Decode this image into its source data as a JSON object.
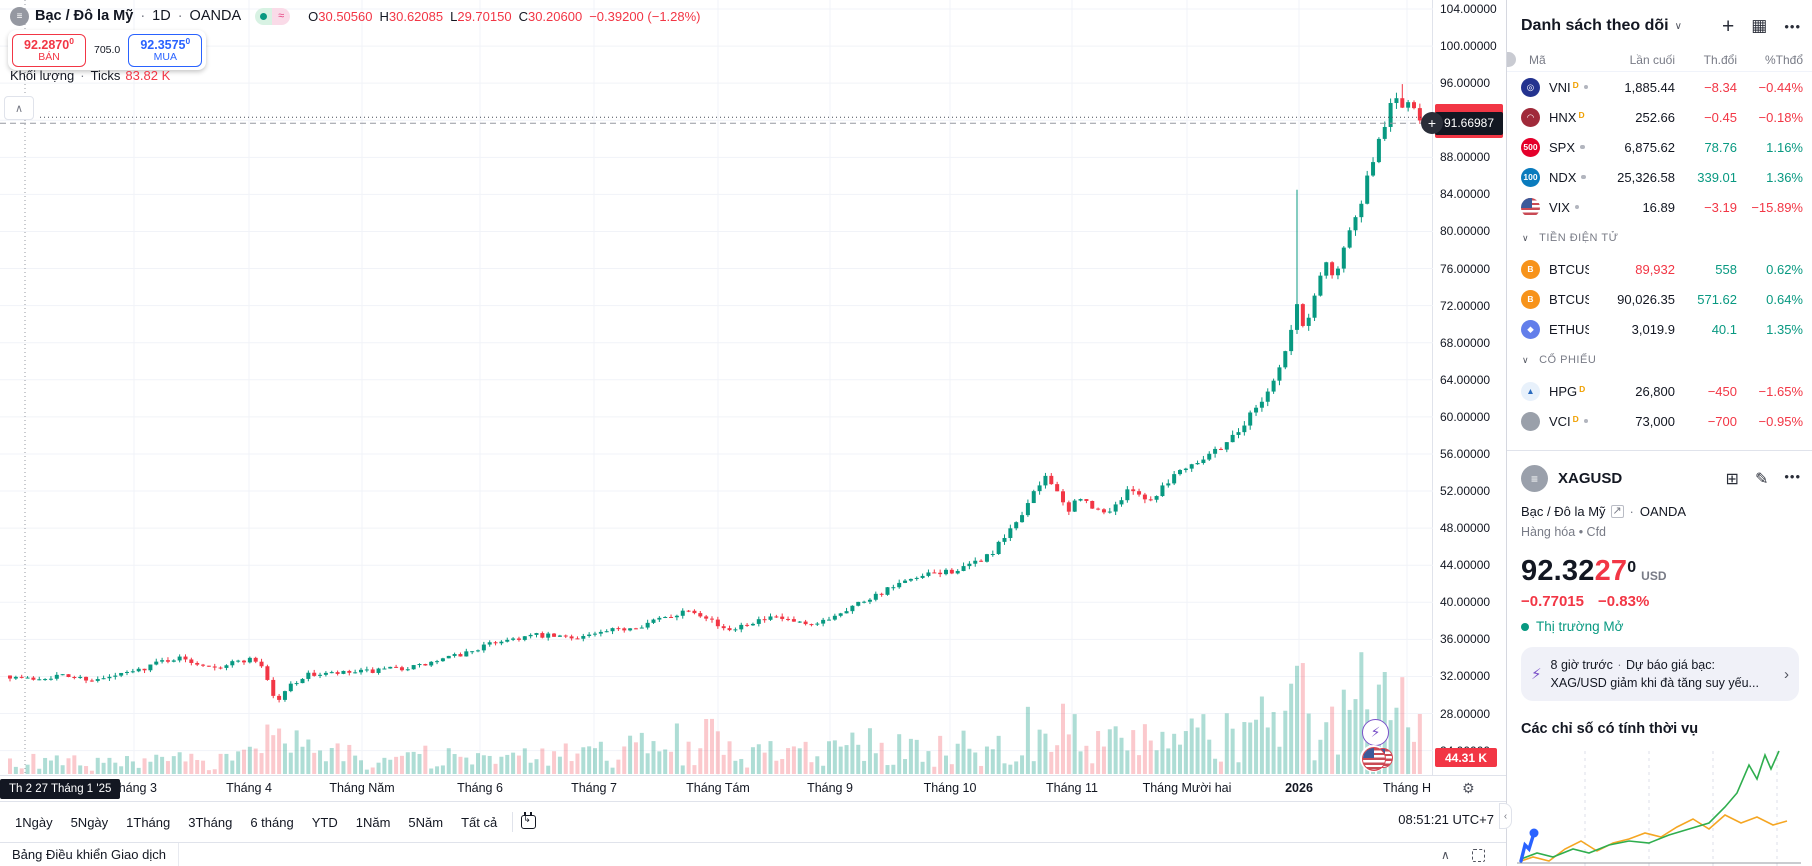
{
  "header": {
    "title": "Bạc / Đô la Mỹ",
    "interval": "1D",
    "exchange": "OANDA",
    "sep": "·",
    "approx_badge": "≈",
    "ohlc": {
      "o_label": "O",
      "o": "30.50560",
      "h_label": "H",
      "h": "30.62085",
      "l_label": "L",
      "l": "29.70150",
      "c_label": "C",
      "c": "30.20600",
      "change": "−0.39200 (−1.28%)"
    },
    "order": {
      "sell_price": "92.2870",
      "sell_sup": "0",
      "sell_label": "BÁN",
      "spread": "705.0",
      "buy_price": "92.3575",
      "buy_sup": "0",
      "buy_label": "MUA"
    },
    "volume_row": {
      "label": "Khối lượng",
      "sep": "·",
      "type": "Ticks",
      "value": "83.82 K"
    }
  },
  "price_scale": {
    "crosshair_price": "91.66987",
    "volume_axis_label": "44.31 K"
  },
  "time_axis": {
    "crosshair_date": "Th 2 27 Tháng 1 '25",
    "months": [
      "Tháng 3",
      "Tháng 4",
      "Tháng Năm",
      "Tháng 6",
      "Tháng 7",
      "Tháng Tám",
      "Tháng 9",
      "Tháng 10",
      "Tháng 11",
      "Tháng Mười hai",
      "2026",
      "Tháng H"
    ]
  },
  "toolbar": {
    "ranges": [
      "1Ngày",
      "5Ngày",
      "1Tháng",
      "3Tháng",
      "6 tháng",
      "YTD",
      "1Năm",
      "5Năm",
      "Tất cả"
    ],
    "clock": "08:51:21 UTC+7"
  },
  "bottom_tab": {
    "label": "Bảng Điều khiển Giao dịch"
  },
  "watchlist": {
    "title": "Danh sách theo dõi",
    "columns": [
      "Mã",
      "Lần cuối",
      "Th.đổi",
      "%Thđổ"
    ],
    "sections": {
      "crypto": "TIỀN ĐIỆN TỬ",
      "stocks": "CỔ PHIẾU"
    },
    "indices": [
      {
        "sym": "VNI",
        "badge": "D",
        "logo_text": "◎",
        "logo_bg": "#24338f",
        "last": "1,885.44",
        "chg": "−8.34",
        "pct": "−0.44%",
        "dir": "down"
      },
      {
        "sym": "HNX",
        "badge": "D",
        "logo_text": "◠",
        "logo_bg": "#a02a3a",
        "last": "252.66",
        "chg": "−0.45",
        "pct": "−0.18%",
        "dir": "down"
      },
      {
        "sym": "SPX",
        "badge": "",
        "logo_text": "500",
        "logo_bg": "#e4002b",
        "last": "6,875.62",
        "chg": "78.76",
        "pct": "1.16%",
        "dir": "up"
      },
      {
        "sym": "NDX",
        "badge": "",
        "logo_text": "100",
        "logo_bg": "#0a7bbd",
        "last": "25,326.58",
        "chg": "339.01",
        "pct": "1.36%",
        "dir": "up"
      },
      {
        "sym": "VIX",
        "badge": "",
        "logo_text": "",
        "logo_bg": "flag",
        "last": "16.89",
        "chg": "−3.19",
        "pct": "−15.89%",
        "dir": "down"
      }
    ],
    "crypto": [
      {
        "sym": "BTCUS",
        "badge": "",
        "logo_text": "B",
        "logo_bg": "#f7931a",
        "last": "89,932",
        "last_red": true,
        "chg": "558",
        "pct": "0.62%",
        "dir": "up"
      },
      {
        "sym": "BTCUS",
        "badge": "",
        "logo_text": "B",
        "logo_bg": "#f7931a",
        "last": "90,026.35",
        "last_red": false,
        "chg": "571.62",
        "pct": "0.64%",
        "dir": "up"
      },
      {
        "sym": "ETHUS",
        "badge": "",
        "logo_text": "◆",
        "logo_bg": "#627eea",
        "last": "3,019.9",
        "last_red": false,
        "chg": "40.1",
        "pct": "1.35%",
        "dir": "up"
      }
    ],
    "stocks": [
      {
        "sym": "HPG",
        "badge": "D",
        "logo_text": "▲",
        "logo_bg": "#e8f1fb",
        "logo_fg": "#2a6bbf",
        "last": "26,800",
        "chg": "−450",
        "pct": "−1.65%",
        "dir": "down"
      },
      {
        "sym": "VCI",
        "badge": "D",
        "logo_text": "",
        "logo_bg": "#9aa0aa",
        "last": "73,000",
        "chg": "−700",
        "pct": "−0.95%",
        "dir": "down"
      }
    ]
  },
  "symbol_panel": {
    "name": "XAGUSD",
    "desc": "Bạc / Đô la Mỹ",
    "exchange": "OANDA",
    "sep": "·",
    "category": "Hàng hóa",
    "instrument": "Cfd",
    "price_main": "92.32",
    "price_accent": "27",
    "price_sup": "0",
    "currency": "USD",
    "change": "−0.77015",
    "change_pct": "−0.83%",
    "market_status": "Thị trường Mở",
    "news_time": "8 giờ trước",
    "news_sep": "·",
    "news_title": "Dự báo giá bạc:",
    "news_body": "XAG/USD giảm khi đà tăng suy yếu...",
    "seasonal_title": "Các chỉ số có tính thời vụ"
  },
  "chart_data": {
    "type": "candlestick",
    "symbol": "XAGUSD",
    "timeframe": "1D",
    "title": "Bạc / Đô la Mỹ · 1D · OANDA",
    "y_axis": {
      "min": 24,
      "max": 104,
      "step": 4,
      "unit_labels_suffix": ".00000"
    },
    "x_axis": {
      "months": [
        "Tháng 3",
        "Tháng 4",
        "Tháng Năm",
        "Tháng 6",
        "Tháng 7",
        "Tháng Tám",
        "Tháng 9",
        "Tháng 10",
        "Tháng 11",
        "Tháng Mười hai",
        "2026",
        "Tháng H"
      ],
      "month_x": [
        134,
        249,
        362,
        480,
        594,
        718,
        830,
        950,
        1072,
        1187,
        1299,
        1407
      ]
    },
    "crosshair": {
      "x": 25,
      "price": 91.66987,
      "date": "Th 2 27 Tháng 1 '25"
    },
    "last_price": 92.3227,
    "price_path_anchors": [
      [
        8,
        32.1
      ],
      [
        30,
        31.7
      ],
      [
        60,
        32.1
      ],
      [
        100,
        31.6
      ],
      [
        126,
        32.3
      ],
      [
        140,
        32.7
      ],
      [
        160,
        33.6
      ],
      [
        178,
        34.0
      ],
      [
        200,
        33.4
      ],
      [
        222,
        33.1
      ],
      [
        240,
        33.7
      ],
      [
        255,
        33.9
      ],
      [
        266,
        32.8
      ],
      [
        272,
        30.0
      ],
      [
        280,
        29.5
      ],
      [
        292,
        31.2
      ],
      [
        310,
        32.2
      ],
      [
        340,
        32.3
      ],
      [
        378,
        32.6
      ],
      [
        420,
        33.1
      ],
      [
        460,
        34.3
      ],
      [
        502,
        35.9
      ],
      [
        535,
        36.4
      ],
      [
        570,
        36.2
      ],
      [
        600,
        36.6
      ],
      [
        640,
        37.5
      ],
      [
        668,
        38.4
      ],
      [
        690,
        39.3
      ],
      [
        710,
        38.4
      ],
      [
        725,
        36.9
      ],
      [
        750,
        37.9
      ],
      [
        780,
        38.3
      ],
      [
        812,
        37.3
      ],
      [
        840,
        38.9
      ],
      [
        868,
        40.4
      ],
      [
        900,
        41.9
      ],
      [
        935,
        43.1
      ],
      [
        965,
        43.6
      ],
      [
        993,
        45.3
      ],
      [
        1012,
        47.8
      ],
      [
        1032,
        51.2
      ],
      [
        1048,
        53.9
      ],
      [
        1058,
        52.0
      ],
      [
        1068,
        49.3
      ],
      [
        1080,
        51.6
      ],
      [
        1092,
        50.1
      ],
      [
        1106,
        49.6
      ],
      [
        1120,
        50.9
      ],
      [
        1134,
        52.4
      ],
      [
        1150,
        50.8
      ],
      [
        1166,
        52.9
      ],
      [
        1184,
        54.6
      ],
      [
        1200,
        55.4
      ],
      [
        1222,
        56.8
      ],
      [
        1240,
        58.6
      ],
      [
        1258,
        61.2
      ],
      [
        1274,
        63.8
      ],
      [
        1288,
        67.5
      ],
      [
        1298,
        72.0
      ],
      [
        1306,
        69.0
      ],
      [
        1316,
        73.5
      ],
      [
        1326,
        76.8
      ],
      [
        1336,
        75.2
      ],
      [
        1348,
        79.6
      ],
      [
        1358,
        81.5
      ],
      [
        1366,
        84.8
      ],
      [
        1374,
        87.2
      ],
      [
        1382,
        90.5
      ],
      [
        1390,
        93.2
      ],
      [
        1398,
        94.6
      ],
      [
        1406,
        93.0
      ],
      [
        1412,
        93.8
      ],
      [
        1418,
        92.1
      ],
      [
        1423,
        92.3
      ]
    ],
    "wick_spikes": [
      [
        1296,
        84.5
      ],
      [
        1398,
        95.9
      ]
    ],
    "volume_profile": [
      [
        8,
        0.7
      ],
      [
        140,
        0.6
      ],
      [
        255,
        1.0
      ],
      [
        275,
        2.6
      ],
      [
        300,
        1.2
      ],
      [
        500,
        0.8
      ],
      [
        640,
        1.4
      ],
      [
        700,
        2.2
      ],
      [
        730,
        1.3
      ],
      [
        800,
        1.1
      ],
      [
        868,
        1.6
      ],
      [
        940,
        1.3
      ],
      [
        993,
        1.9
      ],
      [
        1048,
        2.9
      ],
      [
        1075,
        2.3
      ],
      [
        1120,
        1.7
      ],
      [
        1180,
        1.9
      ],
      [
        1240,
        2.2
      ],
      [
        1280,
        3.4
      ],
      [
        1300,
        4.2
      ],
      [
        1320,
        2.8
      ],
      [
        1340,
        3.0
      ],
      [
        1360,
        4.4
      ],
      [
        1380,
        5.2
      ],
      [
        1395,
        5.6
      ],
      [
        1405,
        4.6
      ],
      [
        1418,
        3.4
      ]
    ],
    "colors": {
      "up": "#089981",
      "down": "#f23645",
      "vol_up": "rgba(8,153,129,0.33)",
      "vol_down": "rgba(242,54,69,0.27)",
      "grid": "#f1f3f8",
      "crosshair": "#9598a1"
    },
    "seasonal": {
      "green_color": "#2fae4e",
      "orange_color": "#f5a623",
      "blue_color": "#2962ff",
      "green": [
        [
          8,
          114
        ],
        [
          24,
          108
        ],
        [
          40,
          112
        ],
        [
          60,
          104
        ],
        [
          76,
          108
        ],
        [
          96,
          100
        ],
        [
          116,
          96
        ],
        [
          136,
          98
        ],
        [
          156,
          90
        ],
        [
          176,
          84
        ],
        [
          196,
          78
        ],
        [
          212,
          62
        ],
        [
          224,
          48
        ],
        [
          236,
          20
        ],
        [
          244,
          34
        ],
        [
          252,
          10
        ],
        [
          258,
          24
        ],
        [
          266,
          6
        ]
      ],
      "orange": [
        [
          8,
          116
        ],
        [
          20,
          112
        ],
        [
          36,
          116
        ],
        [
          52,
          104
        ],
        [
          68,
          96
        ],
        [
          84,
          106
        ],
        [
          100,
          98
        ],
        [
          116,
          94
        ],
        [
          132,
          88
        ],
        [
          148,
          92
        ],
        [
          164,
          82
        ],
        [
          180,
          74
        ],
        [
          196,
          84
        ],
        [
          212,
          70
        ],
        [
          228,
          78
        ],
        [
          244,
          72
        ],
        [
          260,
          80
        ],
        [
          274,
          76
        ]
      ],
      "blue": [
        [
          8,
          116
        ],
        [
          12,
          100
        ],
        [
          16,
          104
        ],
        [
          21,
          88
        ]
      ]
    }
  }
}
